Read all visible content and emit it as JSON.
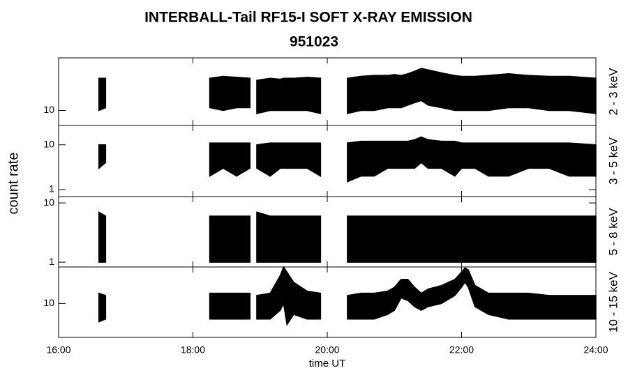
{
  "title": "INTERBALL-Tail RF15-I SOFT X-RAY EMISSION",
  "subtitle": "951023",
  "ylabel": "count rate",
  "x_axis": {
    "label": "time UT",
    "xlim": [
      16,
      24
    ],
    "xticks": [
      {
        "value": 16,
        "label": "16:00"
      },
      {
        "value": 18,
        "label": "18:00"
      },
      {
        "value": 20,
        "label": "20:00"
      },
      {
        "value": 22,
        "label": "22:00"
      },
      {
        "value": 24,
        "label": "24:00"
      }
    ]
  },
  "chart_data": [
    {
      "type": "range-area",
      "label": "2 - 3 keV",
      "log": true,
      "ylim": [
        6,
        60
      ],
      "yticks": [
        10
      ],
      "color": "#000000",
      "x": [
        16.6,
        16.7,
        17.5,
        18.25,
        18.45,
        18.65,
        18.85,
        18.9,
        18.95,
        19.15,
        19.3,
        19.35,
        19.4,
        19.5,
        19.7,
        19.9,
        20.1,
        20.3,
        20.5,
        20.7,
        20.9,
        21.0,
        21.1,
        21.2,
        21.3,
        21.4,
        21.5,
        21.7,
        21.9,
        22.0,
        22.05,
        22.1,
        22.2,
        22.4,
        22.7,
        23.0,
        23.3,
        23.6,
        24.0
      ],
      "high": [
        30,
        30,
        null,
        30,
        32,
        31,
        30,
        null,
        28,
        30,
        29,
        30,
        30,
        30,
        31,
        30,
        null,
        30,
        32,
        33,
        33,
        34,
        33,
        35,
        38,
        42,
        40,
        36,
        33,
        32,
        32,
        32,
        32,
        33,
        35,
        33,
        32,
        32,
        30
      ],
      "low": [
        10,
        11,
        null,
        11,
        10,
        11,
        11,
        null,
        9,
        10,
        10,
        10,
        10,
        10,
        10,
        9,
        null,
        9,
        10,
        10,
        11,
        11,
        11,
        12,
        13,
        14,
        12,
        11,
        10,
        10,
        10,
        10,
        10,
        10,
        11,
        11,
        10,
        10,
        9
      ]
    },
    {
      "type": "range-area",
      "label": "3 - 5 keV",
      "log": true,
      "ylim": [
        0.7,
        27
      ],
      "yticks": [
        1,
        10
      ],
      "color": "#000000",
      "x": [
        16.6,
        16.7,
        17.5,
        18.25,
        18.45,
        18.65,
        18.85,
        18.9,
        18.95,
        19.15,
        19.3,
        19.35,
        19.4,
        19.5,
        19.7,
        19.9,
        20.1,
        20.3,
        20.5,
        20.7,
        20.9,
        21.0,
        21.1,
        21.2,
        21.3,
        21.4,
        21.5,
        21.7,
        21.9,
        22.0,
        22.05,
        22.1,
        22.2,
        22.4,
        22.7,
        23.0,
        23.3,
        23.6,
        24.0
      ],
      "high": [
        10,
        10,
        null,
        11,
        11,
        11,
        11,
        null,
        10,
        11,
        11,
        11,
        11,
        11,
        11,
        11,
        null,
        11,
        12,
        12,
        12,
        12,
        12,
        12,
        13,
        15,
        13,
        12,
        12,
        11,
        11,
        11,
        11,
        11,
        11,
        11,
        11,
        11,
        10
      ],
      "low": [
        3,
        4,
        null,
        2,
        3,
        2,
        3,
        null,
        3,
        2,
        3,
        3,
        3,
        3,
        3,
        2,
        null,
        1.5,
        2,
        2,
        3,
        3,
        3,
        3,
        3,
        4,
        3,
        3,
        2,
        3,
        3,
        3,
        3,
        2,
        2,
        3,
        3,
        2,
        2
      ]
    },
    {
      "type": "range-area",
      "label": "5 - 8 keV",
      "log": true,
      "ylim": [
        0.83,
        12.8
      ],
      "yticks": [
        1,
        10
      ],
      "color": "#000000",
      "x": [
        16.6,
        16.7,
        17.5,
        18.25,
        18.45,
        18.65,
        18.85,
        18.9,
        18.95,
        19.15,
        19.3,
        19.35,
        19.4,
        19.5,
        19.7,
        19.9,
        20.1,
        20.3,
        20.5,
        20.7,
        20.9,
        21.0,
        21.1,
        21.2,
        21.3,
        21.4,
        21.5,
        21.7,
        21.9,
        22.0,
        22.05,
        22.1,
        22.2,
        22.4,
        22.7,
        23.0,
        23.3,
        23.6,
        24.0
      ],
      "high": [
        7,
        6,
        null,
        6,
        6,
        6,
        6,
        null,
        7,
        6,
        6,
        6,
        6,
        6,
        6,
        6,
        null,
        6,
        6,
        6,
        6,
        6,
        6,
        6,
        6,
        6,
        6,
        6,
        6,
        6,
        6,
        6,
        6,
        6,
        6,
        6,
        6,
        6,
        6
      ],
      "low": [
        1,
        1,
        null,
        1,
        1,
        1,
        1,
        null,
        1,
        1,
        1,
        1,
        1,
        1,
        1,
        1,
        null,
        1,
        1,
        1,
        1,
        1,
        1,
        1,
        1,
        1,
        1,
        1,
        1,
        1,
        1,
        1,
        1,
        1,
        1,
        1,
        1,
        1,
        1
      ]
    },
    {
      "type": "range-area",
      "label": "10 - 15 keV",
      "log": true,
      "ylim": [
        3.3,
        33
      ],
      "yticks": [
        10
      ],
      "color": "#000000",
      "x": [
        16.6,
        16.7,
        17.5,
        18.25,
        18.45,
        18.65,
        18.85,
        18.9,
        18.95,
        19.15,
        19.3,
        19.35,
        19.4,
        19.5,
        19.7,
        19.9,
        20.1,
        20.3,
        20.5,
        20.7,
        20.9,
        21.0,
        21.1,
        21.2,
        21.3,
        21.4,
        21.5,
        21.7,
        21.9,
        22.0,
        22.05,
        22.1,
        22.2,
        22.4,
        22.7,
        23.0,
        23.3,
        23.6,
        24.0
      ],
      "high": [
        14,
        13,
        null,
        14,
        14,
        14,
        14,
        null,
        13,
        14,
        25,
        33,
        28,
        20,
        15,
        14,
        null,
        13,
        14,
        14,
        15,
        17,
        22,
        22,
        17,
        14,
        16,
        18,
        22,
        28,
        32,
        30,
        18,
        14,
        14,
        14,
        13,
        13,
        13
      ],
      "low": [
        5.5,
        6,
        null,
        6,
        6,
        6,
        6,
        null,
        6,
        6,
        8,
        10,
        5,
        7,
        6,
        6,
        null,
        6,
        6,
        6,
        7,
        8,
        12,
        11,
        9,
        8,
        9,
        10,
        13,
        17,
        20,
        17,
        9,
        7,
        6,
        6,
        6,
        6,
        6
      ]
    }
  ]
}
